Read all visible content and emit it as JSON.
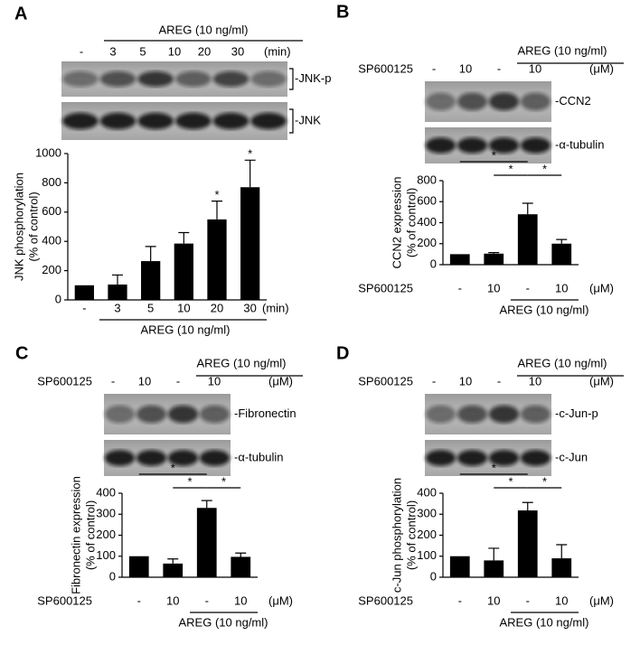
{
  "chart_data": [
    {
      "panel": "A",
      "type": "bar",
      "categories": [
        "-",
        "3",
        "5",
        "10",
        "20",
        "30"
      ],
      "x_unit": "(min)",
      "group_label": "AREG (10 ng/ml)",
      "values": [
        100,
        105,
        265,
        385,
        550,
        770
      ],
      "errors": [
        null,
        65,
        100,
        75,
        125,
        185
      ],
      "annotations": [
        null,
        null,
        null,
        null,
        "*",
        "*"
      ],
      "y_label": [
        "JNK phosphorylation",
        "(% of control)"
      ],
      "ylim": [
        0,
        1000
      ],
      "yticks": [
        0,
        200,
        400,
        600,
        800,
        1000
      ],
      "color": "#000000",
      "blot": {
        "group_label": "AREG (10 ng/ml)",
        "lanes": [
          "-",
          "3",
          "5",
          "10",
          "20",
          "30"
        ],
        "unit": "(min)",
        "bands": [
          "-JNK-p",
          "-JNK"
        ]
      }
    },
    {
      "panel": "B",
      "type": "bar",
      "x_row_label": "SP600125",
      "categories": [
        "-",
        "10",
        "-",
        "10"
      ],
      "x_unit": "(μM)",
      "group_label": "AREG (10 ng/ml)",
      "values": [
        100,
        105,
        480,
        200
      ],
      "errors": [
        null,
        10,
        105,
        40
      ],
      "comparisons": [
        {
          "pair": [
            0,
            2
          ],
          "label": "*"
        },
        {
          "pair": [
            1,
            2
          ],
          "label": "*"
        },
        {
          "pair": [
            2,
            3
          ],
          "label": "*"
        }
      ],
      "y_label": [
        "CCN2 expression",
        "(% of control)"
      ],
      "ylim": [
        0,
        800
      ],
      "yticks": [
        0,
        200,
        400,
        600,
        800
      ],
      "color": "#000000",
      "blot": {
        "group_label": "AREG (10 ng/ml)",
        "row_label": "SP600125",
        "lanes": [
          "-",
          "10",
          "-",
          "10"
        ],
        "unit": "(μM)",
        "bands": [
          "-CCN2",
          "-α-tubulin"
        ]
      }
    },
    {
      "panel": "C",
      "type": "bar",
      "x_row_label": "SP600125",
      "categories": [
        "-",
        "10",
        "-",
        "10"
      ],
      "x_unit": "(μM)",
      "group_label": "AREG (10 ng/ml)",
      "values": [
        100,
        65,
        330,
        97
      ],
      "errors": [
        null,
        22,
        35,
        18
      ],
      "comparisons": [
        {
          "pair": [
            0,
            2
          ],
          "label": "*"
        },
        {
          "pair": [
            1,
            2
          ],
          "label": "*"
        },
        {
          "pair": [
            2,
            3
          ],
          "label": "*"
        }
      ],
      "y_label": [
        "Fibronectin expression",
        "(% of control)"
      ],
      "ylim": [
        0,
        400
      ],
      "yticks": [
        0,
        100,
        200,
        300,
        400
      ],
      "color": "#000000",
      "blot": {
        "group_label": "AREG (10 ng/ml)",
        "row_label": "SP600125",
        "lanes": [
          "-",
          "10",
          "-",
          "10"
        ],
        "unit": "(μM)",
        "bands": [
          "-Fibronectin",
          "-α-tubulin"
        ]
      }
    },
    {
      "panel": "D",
      "type": "bar",
      "x_row_label": "SP600125",
      "categories": [
        "-",
        "10",
        "-",
        "10"
      ],
      "x_unit": "(μM)",
      "group_label": "AREG (10 ng/ml)",
      "values": [
        100,
        80,
        318,
        90
      ],
      "errors": [
        null,
        58,
        38,
        65
      ],
      "comparisons": [
        {
          "pair": [
            0,
            2
          ],
          "label": "*"
        },
        {
          "pair": [
            1,
            2
          ],
          "label": "*"
        },
        {
          "pair": [
            2,
            3
          ],
          "label": "*"
        }
      ],
      "y_label": [
        "c-Jun phosphorylation",
        "(% of control)"
      ],
      "ylim": [
        0,
        400
      ],
      "yticks": [
        0,
        100,
        200,
        300,
        400
      ],
      "color": "#000000",
      "blot": {
        "group_label": "AREG (10 ng/ml)",
        "row_label": "SP600125",
        "lanes": [
          "-",
          "10",
          "-",
          "10"
        ],
        "unit": "(μM)",
        "bands": [
          "-c-Jun-p",
          "-c-Jun"
        ]
      }
    }
  ]
}
